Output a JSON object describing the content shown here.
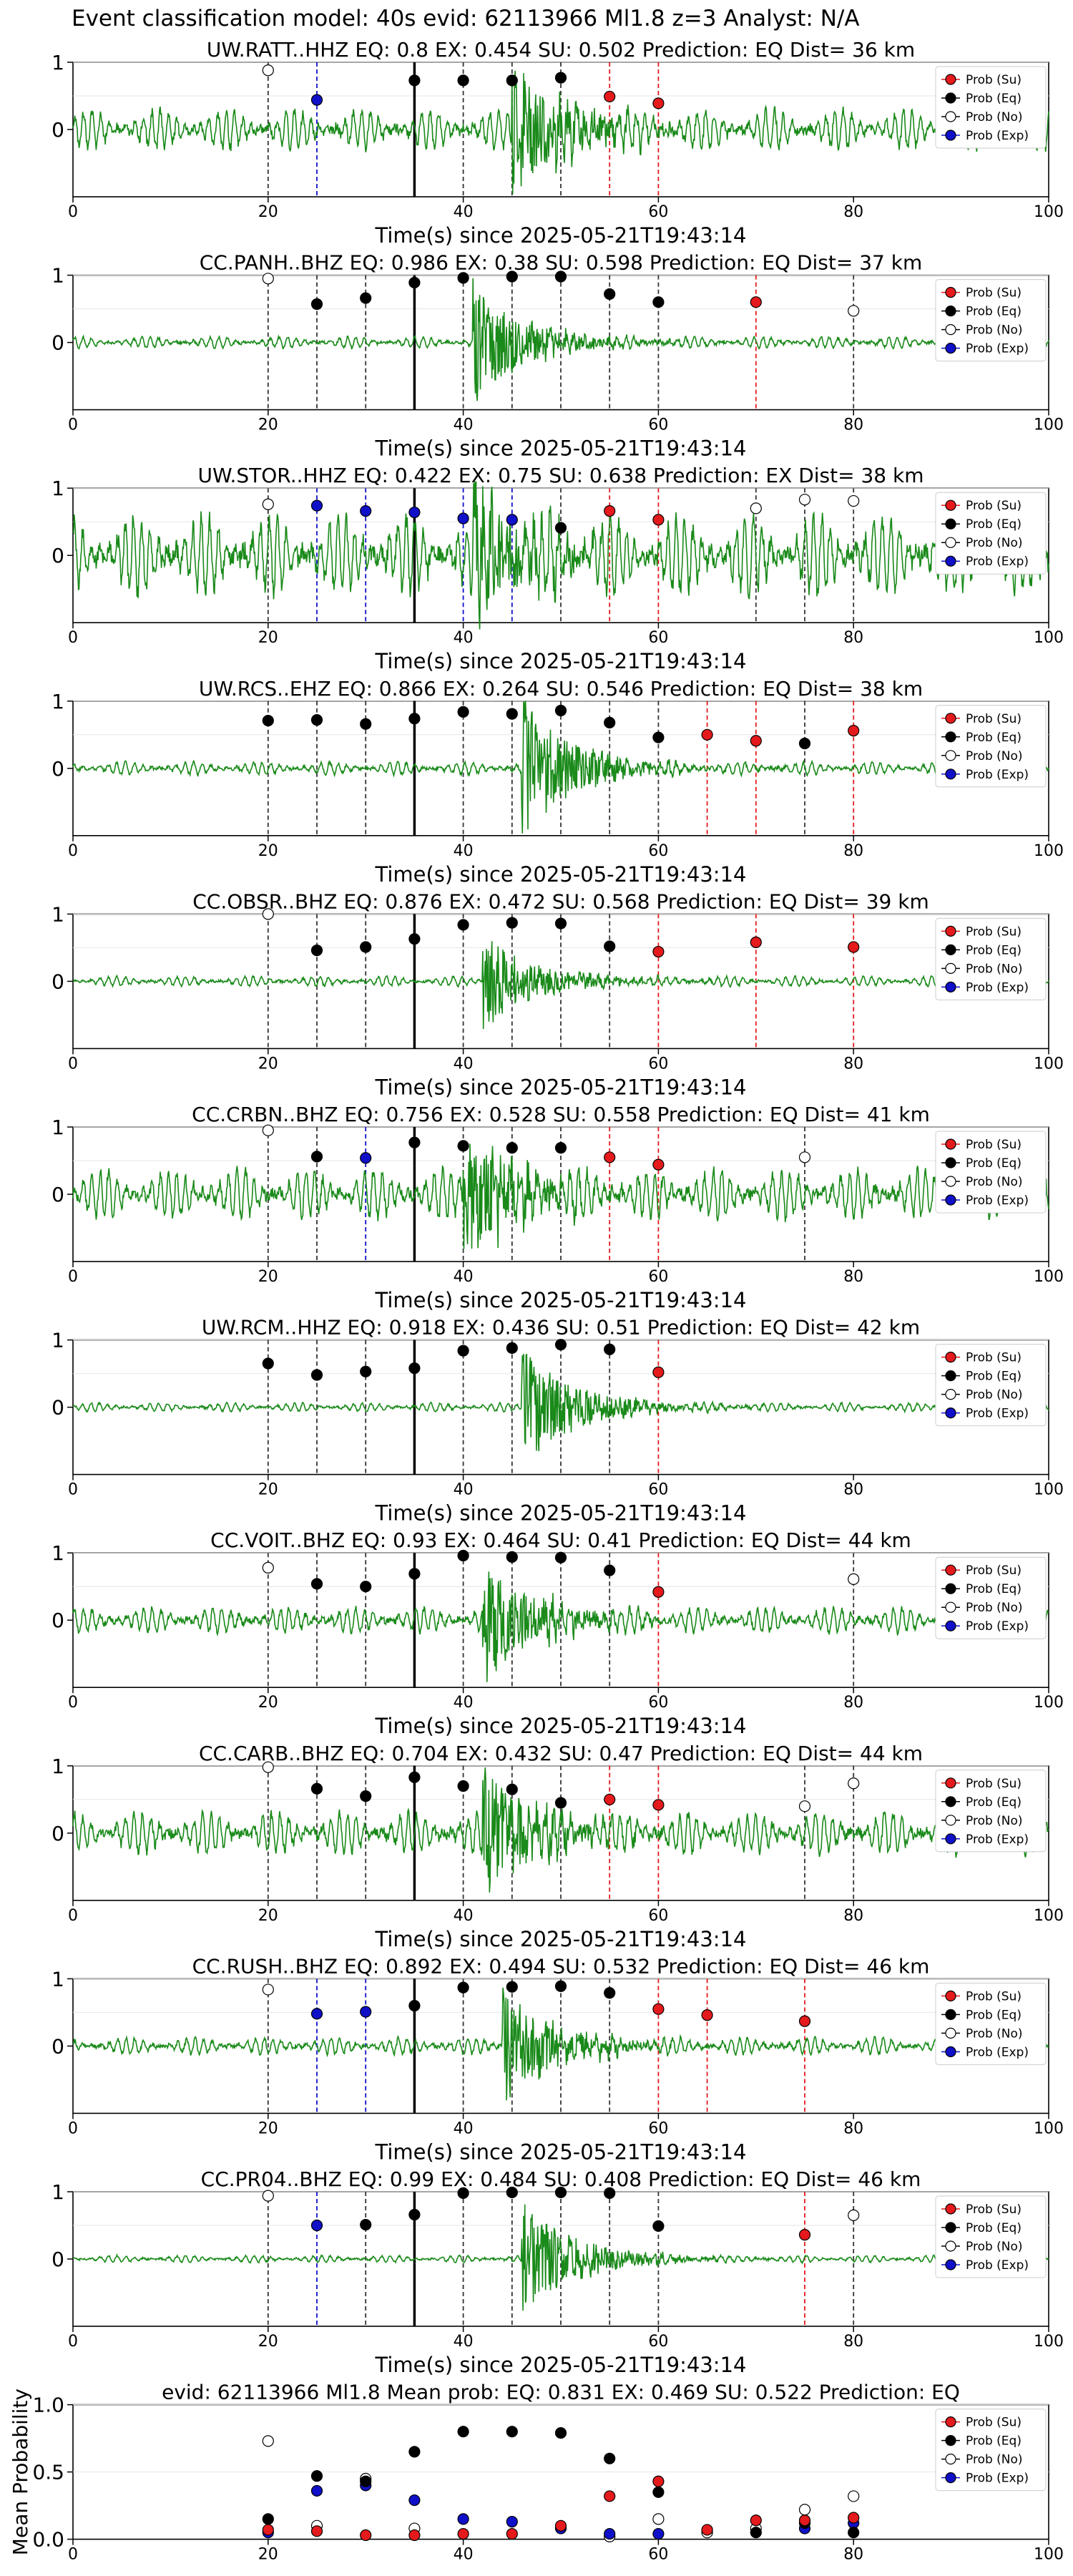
{
  "figure_title": "Event classification model: 40s evid: 62113966 Ml1.8 z=3 Analyst: N/A",
  "xlabel": "Time(s) since 2025-05-21T19:43:14",
  "legend": [
    "Prob (Su)",
    "Prob (Eq)",
    "Prob (No)",
    "Prob (Exp)"
  ],
  "colors": {
    "su": "#e41a1c",
    "eq": "#000000",
    "no": "#ffffff",
    "exp": "#1010c8",
    "trace": "#1a8a1a"
  },
  "chart_data": [
    {
      "type": "scatter",
      "title": "UW.RATT..HHZ   EQ: 0.8  EX: 0.454  SU: 0.502   Prediction: EQ    Dist= 36 km",
      "xlim": [
        0,
        100
      ],
      "ylim": [
        -1,
        1
      ],
      "xticks": [
        "0",
        "20",
        "40",
        "60",
        "80",
        "100"
      ],
      "yticks": [
        "1",
        "0"
      ],
      "p_arrival": 35,
      "quake_start": 45,
      "noise": 0.28,
      "quake_amp": 1.0,
      "points": [
        {
          "x": 20,
          "y": 0.88,
          "c": "no"
        },
        {
          "x": 25,
          "y": 0.44,
          "c": "exp"
        },
        {
          "x": 35,
          "y": 0.73,
          "c": "eq"
        },
        {
          "x": 40,
          "y": 0.73,
          "c": "eq"
        },
        {
          "x": 45,
          "y": 0.73,
          "c": "eq"
        },
        {
          "x": 50,
          "y": 0.77,
          "c": "eq"
        },
        {
          "x": 55,
          "y": 0.49,
          "c": "su"
        },
        {
          "x": 60,
          "y": 0.39,
          "c": "su"
        }
      ]
    },
    {
      "type": "scatter",
      "title": "CC.PANH..BHZ   EQ: 0.986  EX: 0.38  SU: 0.598   Prediction: EQ    Dist= 37 km",
      "xlim": [
        0,
        100
      ],
      "ylim": [
        -1,
        1
      ],
      "xticks": [
        "0",
        "20",
        "40",
        "60",
        "80",
        "100"
      ],
      "yticks": [
        "1",
        "0"
      ],
      "p_arrival": 35,
      "quake_start": 41,
      "noise": 0.08,
      "quake_amp": 0.9,
      "points": [
        {
          "x": 20,
          "y": 0.95,
          "c": "no"
        },
        {
          "x": 25,
          "y": 0.57,
          "c": "eq"
        },
        {
          "x": 30,
          "y": 0.66,
          "c": "eq"
        },
        {
          "x": 35,
          "y": 0.89,
          "c": "eq"
        },
        {
          "x": 40,
          "y": 0.96,
          "c": "eq"
        },
        {
          "x": 45,
          "y": 0.98,
          "c": "eq"
        },
        {
          "x": 50,
          "y": 0.98,
          "c": "eq"
        },
        {
          "x": 55,
          "y": 0.72,
          "c": "eq"
        },
        {
          "x": 60,
          "y": 0.6,
          "c": "eq"
        },
        {
          "x": 70,
          "y": 0.6,
          "c": "su"
        },
        {
          "x": 80,
          "y": 0.47,
          "c": "no"
        }
      ]
    },
    {
      "type": "scatter",
      "title": "UW.STOR..HHZ   EQ: 0.422  EX: 0.75  SU: 0.638   Prediction: EX    Dist= 38 km",
      "xlim": [
        0,
        100
      ],
      "ylim": [
        -1,
        1
      ],
      "xticks": [
        "0",
        "20",
        "40",
        "60",
        "80",
        "100"
      ],
      "yticks": [
        "1",
        "0"
      ],
      "p_arrival": 35,
      "quake_start": 41,
      "noise": 0.55,
      "quake_amp": 1.0,
      "points": [
        {
          "x": 20,
          "y": 0.76,
          "c": "no"
        },
        {
          "x": 25,
          "y": 0.74,
          "c": "exp"
        },
        {
          "x": 30,
          "y": 0.66,
          "c": "exp"
        },
        {
          "x": 35,
          "y": 0.64,
          "c": "exp"
        },
        {
          "x": 40,
          "y": 0.55,
          "c": "exp"
        },
        {
          "x": 45,
          "y": 0.53,
          "c": "exp"
        },
        {
          "x": 50,
          "y": 0.41,
          "c": "eq"
        },
        {
          "x": 55,
          "y": 0.66,
          "c": "su"
        },
        {
          "x": 60,
          "y": 0.53,
          "c": "su"
        },
        {
          "x": 70,
          "y": 0.7,
          "c": "no"
        },
        {
          "x": 75,
          "y": 0.83,
          "c": "no"
        },
        {
          "x": 80,
          "y": 0.81,
          "c": "no"
        }
      ]
    },
    {
      "type": "scatter",
      "title": "UW.RCS..EHZ   EQ: 0.866  EX: 0.264  SU: 0.546   Prediction: EQ    Dist= 38 km",
      "xlim": [
        0,
        100
      ],
      "ylim": [
        -1,
        1
      ],
      "xticks": [
        "0",
        "20",
        "40",
        "60",
        "80",
        "100"
      ],
      "yticks": [
        "1",
        "0"
      ],
      "p_arrival": 35,
      "quake_start": 46,
      "noise": 0.09,
      "quake_amp": 1.0,
      "points": [
        {
          "x": 20,
          "y": 0.71,
          "c": "eq"
        },
        {
          "x": 25,
          "y": 0.72,
          "c": "eq"
        },
        {
          "x": 30,
          "y": 0.66,
          "c": "eq"
        },
        {
          "x": 35,
          "y": 0.74,
          "c": "eq"
        },
        {
          "x": 40,
          "y": 0.84,
          "c": "eq"
        },
        {
          "x": 45,
          "y": 0.81,
          "c": "eq"
        },
        {
          "x": 50,
          "y": 0.86,
          "c": "eq"
        },
        {
          "x": 55,
          "y": 0.68,
          "c": "eq"
        },
        {
          "x": 60,
          "y": 0.46,
          "c": "eq"
        },
        {
          "x": 65,
          "y": 0.5,
          "c": "su"
        },
        {
          "x": 70,
          "y": 0.41,
          "c": "su"
        },
        {
          "x": 75,
          "y": 0.37,
          "c": "eq"
        },
        {
          "x": 80,
          "y": 0.56,
          "c": "su"
        }
      ]
    },
    {
      "type": "scatter",
      "title": "CC.OBSR..BHZ   EQ: 0.876  EX: 0.472  SU: 0.568   Prediction: EQ    Dist= 39 km",
      "xlim": [
        0,
        100
      ],
      "ylim": [
        -1,
        1
      ],
      "xticks": [
        "0",
        "20",
        "40",
        "60",
        "80",
        "100"
      ],
      "yticks": [
        "1",
        "0"
      ],
      "p_arrival": 35,
      "quake_start": 42,
      "noise": 0.07,
      "quake_amp": 0.75,
      "points": [
        {
          "x": 20,
          "y": 1.0,
          "c": "no"
        },
        {
          "x": 25,
          "y": 0.46,
          "c": "eq"
        },
        {
          "x": 30,
          "y": 0.51,
          "c": "eq"
        },
        {
          "x": 35,
          "y": 0.63,
          "c": "eq"
        },
        {
          "x": 40,
          "y": 0.84,
          "c": "eq"
        },
        {
          "x": 45,
          "y": 0.87,
          "c": "eq"
        },
        {
          "x": 50,
          "y": 0.86,
          "c": "eq"
        },
        {
          "x": 55,
          "y": 0.52,
          "c": "eq"
        },
        {
          "x": 60,
          "y": 0.44,
          "c": "su"
        },
        {
          "x": 70,
          "y": 0.58,
          "c": "su"
        },
        {
          "x": 80,
          "y": 0.51,
          "c": "su"
        }
      ]
    },
    {
      "type": "scatter",
      "title": "CC.CRBN..BHZ   EQ: 0.756  EX: 0.528  SU: 0.558   Prediction: EQ    Dist= 41 km",
      "xlim": [
        0,
        100
      ],
      "ylim": [
        -1,
        1
      ],
      "xticks": [
        "0",
        "20",
        "40",
        "60",
        "80",
        "100"
      ],
      "yticks": [
        "1",
        "0"
      ],
      "p_arrival": 35,
      "quake_start": 40,
      "noise": 0.35,
      "quake_amp": 1.0,
      "points": [
        {
          "x": 20,
          "y": 0.95,
          "c": "no"
        },
        {
          "x": 25,
          "y": 0.56,
          "c": "eq"
        },
        {
          "x": 30,
          "y": 0.54,
          "c": "exp"
        },
        {
          "x": 35,
          "y": 0.77,
          "c": "eq"
        },
        {
          "x": 40,
          "y": 0.72,
          "c": "eq"
        },
        {
          "x": 45,
          "y": 0.69,
          "c": "eq"
        },
        {
          "x": 50,
          "y": 0.69,
          "c": "eq"
        },
        {
          "x": 55,
          "y": 0.55,
          "c": "su"
        },
        {
          "x": 60,
          "y": 0.44,
          "c": "su"
        },
        {
          "x": 75,
          "y": 0.55,
          "c": "no"
        }
      ]
    },
    {
      "type": "scatter",
      "title": "UW.RCM..HHZ   EQ: 0.918  EX: 0.436  SU: 0.51   Prediction: EQ    Dist= 42 km",
      "xlim": [
        0,
        100
      ],
      "ylim": [
        -1,
        1
      ],
      "xticks": [
        "0",
        "20",
        "40",
        "60",
        "80",
        "100"
      ],
      "yticks": [
        "1",
        "0"
      ],
      "p_arrival": 35,
      "quake_start": 46,
      "noise": 0.06,
      "quake_amp": 0.9,
      "points": [
        {
          "x": 20,
          "y": 0.65,
          "c": "eq"
        },
        {
          "x": 25,
          "y": 0.48,
          "c": "eq"
        },
        {
          "x": 30,
          "y": 0.53,
          "c": "eq"
        },
        {
          "x": 35,
          "y": 0.58,
          "c": "eq"
        },
        {
          "x": 40,
          "y": 0.84,
          "c": "eq"
        },
        {
          "x": 45,
          "y": 0.88,
          "c": "eq"
        },
        {
          "x": 50,
          "y": 0.93,
          "c": "eq"
        },
        {
          "x": 55,
          "y": 0.86,
          "c": "eq"
        },
        {
          "x": 60,
          "y": 0.52,
          "c": "su"
        }
      ]
    },
    {
      "type": "scatter",
      "title": "CC.VOIT..BHZ   EQ: 0.93  EX: 0.464  SU: 0.41   Prediction: EQ    Dist= 44 km",
      "xlim": [
        0,
        100
      ],
      "ylim": [
        -1,
        1
      ],
      "xticks": [
        "0",
        "20",
        "40",
        "60",
        "80",
        "100"
      ],
      "yticks": [
        "1",
        "0"
      ],
      "p_arrival": 35,
      "quake_start": 42,
      "noise": 0.18,
      "quake_amp": 0.85,
      "points": [
        {
          "x": 20,
          "y": 0.78,
          "c": "no"
        },
        {
          "x": 25,
          "y": 0.54,
          "c": "eq"
        },
        {
          "x": 30,
          "y": 0.5,
          "c": "eq"
        },
        {
          "x": 35,
          "y": 0.69,
          "c": "eq"
        },
        {
          "x": 40,
          "y": 0.96,
          "c": "eq"
        },
        {
          "x": 45,
          "y": 0.94,
          "c": "eq"
        },
        {
          "x": 50,
          "y": 0.93,
          "c": "eq"
        },
        {
          "x": 55,
          "y": 0.74,
          "c": "eq"
        },
        {
          "x": 60,
          "y": 0.42,
          "c": "su"
        },
        {
          "x": 80,
          "y": 0.61,
          "c": "no"
        }
      ]
    },
    {
      "type": "scatter",
      "title": "CC.CARB..BHZ   EQ: 0.704  EX: 0.432  SU: 0.47   Prediction: EQ    Dist= 44 km",
      "xlim": [
        0,
        100
      ],
      "ylim": [
        -1,
        1
      ],
      "xticks": [
        "0",
        "20",
        "40",
        "60",
        "80",
        "100"
      ],
      "yticks": [
        "1",
        "0"
      ],
      "p_arrival": 35,
      "quake_start": 42,
      "noise": 0.3,
      "quake_amp": 1.0,
      "points": [
        {
          "x": 20,
          "y": 0.98,
          "c": "no"
        },
        {
          "x": 25,
          "y": 0.66,
          "c": "eq"
        },
        {
          "x": 30,
          "y": 0.55,
          "c": "eq"
        },
        {
          "x": 35,
          "y": 0.83,
          "c": "eq"
        },
        {
          "x": 40,
          "y": 0.7,
          "c": "eq"
        },
        {
          "x": 45,
          "y": 0.65,
          "c": "eq"
        },
        {
          "x": 50,
          "y": 0.45,
          "c": "eq"
        },
        {
          "x": 55,
          "y": 0.5,
          "c": "su"
        },
        {
          "x": 60,
          "y": 0.42,
          "c": "su"
        },
        {
          "x": 75,
          "y": 0.4,
          "c": "no"
        },
        {
          "x": 80,
          "y": 0.74,
          "c": "no"
        }
      ]
    },
    {
      "type": "scatter",
      "title": "CC.RUSH..BHZ   EQ: 0.892  EX: 0.494  SU: 0.532   Prediction: EQ    Dist= 46 km",
      "xlim": [
        0,
        100
      ],
      "ylim": [
        -1,
        1
      ],
      "xticks": [
        "0",
        "20",
        "40",
        "60",
        "80",
        "100"
      ],
      "yticks": [
        "1",
        "0"
      ],
      "p_arrival": 35,
      "quake_start": 44,
      "noise": 0.12,
      "quake_amp": 0.9,
      "points": [
        {
          "x": 20,
          "y": 0.84,
          "c": "no"
        },
        {
          "x": 25,
          "y": 0.48,
          "c": "exp"
        },
        {
          "x": 30,
          "y": 0.51,
          "c": "exp"
        },
        {
          "x": 35,
          "y": 0.6,
          "c": "eq"
        },
        {
          "x": 40,
          "y": 0.87,
          "c": "eq"
        },
        {
          "x": 45,
          "y": 0.88,
          "c": "eq"
        },
        {
          "x": 50,
          "y": 0.89,
          "c": "eq"
        },
        {
          "x": 55,
          "y": 0.79,
          "c": "eq"
        },
        {
          "x": 60,
          "y": 0.55,
          "c": "su"
        },
        {
          "x": 65,
          "y": 0.46,
          "c": "su"
        },
        {
          "x": 75,
          "y": 0.37,
          "c": "su"
        }
      ]
    },
    {
      "type": "scatter",
      "title": "CC.PR04..BHZ   EQ: 0.99  EX: 0.484  SU: 0.408   Prediction: EQ    Dist= 46 km",
      "xlim": [
        0,
        100
      ],
      "ylim": [
        -1,
        1
      ],
      "xticks": [
        "0",
        "20",
        "40",
        "60",
        "80",
        "100"
      ],
      "yticks": [
        "1",
        "0"
      ],
      "p_arrival": 35,
      "quake_start": 46,
      "noise": 0.05,
      "quake_amp": 0.85,
      "points": [
        {
          "x": 20,
          "y": 0.94,
          "c": "no"
        },
        {
          "x": 25,
          "y": 0.5,
          "c": "exp"
        },
        {
          "x": 30,
          "y": 0.51,
          "c": "eq"
        },
        {
          "x": 35,
          "y": 0.66,
          "c": "eq"
        },
        {
          "x": 40,
          "y": 0.98,
          "c": "eq"
        },
        {
          "x": 45,
          "y": 0.99,
          "c": "eq"
        },
        {
          "x": 50,
          "y": 0.99,
          "c": "eq"
        },
        {
          "x": 55,
          "y": 0.98,
          "c": "eq"
        },
        {
          "x": 60,
          "y": 0.49,
          "c": "eq"
        },
        {
          "x": 75,
          "y": 0.36,
          "c": "su"
        },
        {
          "x": 80,
          "y": 0.65,
          "c": "no"
        }
      ]
    },
    {
      "type": "scatter",
      "summary": true,
      "title": "evid: 62113966  Ml1.8   Mean prob:   EQ: 0.831  EX: 0.469  SU: 0.522   Prediction: EQ",
      "ylabel": "Mean Probability",
      "xlim": [
        0,
        100
      ],
      "ylim": [
        0,
        1
      ],
      "xticks": [
        "0",
        "20",
        "40",
        "60",
        "80",
        "100"
      ],
      "yticks": [
        "0.0",
        "0.5",
        "1.0"
      ],
      "points": [
        {
          "x": 20,
          "y": 0.73,
          "c": "no"
        },
        {
          "x": 25,
          "y": 0.1,
          "c": "no"
        },
        {
          "x": 30,
          "y": 0.45,
          "c": "no"
        },
        {
          "x": 35,
          "y": 0.08,
          "c": "no"
        },
        {
          "x": 55,
          "y": 0.02,
          "c": "no"
        },
        {
          "x": 60,
          "y": 0.15,
          "c": "no"
        },
        {
          "x": 65,
          "y": 0.05,
          "c": "no"
        },
        {
          "x": 70,
          "y": 0.08,
          "c": "no"
        },
        {
          "x": 75,
          "y": 0.22,
          "c": "no"
        },
        {
          "x": 80,
          "y": 0.32,
          "c": "no"
        },
        {
          "x": 20,
          "y": 0.05,
          "c": "exp"
        },
        {
          "x": 25,
          "y": 0.36,
          "c": "exp"
        },
        {
          "x": 30,
          "y": 0.4,
          "c": "exp"
        },
        {
          "x": 35,
          "y": 0.29,
          "c": "exp"
        },
        {
          "x": 40,
          "y": 0.15,
          "c": "exp"
        },
        {
          "x": 45,
          "y": 0.13,
          "c": "exp"
        },
        {
          "x": 50,
          "y": 0.08,
          "c": "exp"
        },
        {
          "x": 55,
          "y": 0.04,
          "c": "exp"
        },
        {
          "x": 60,
          "y": 0.04,
          "c": "exp"
        },
        {
          "x": 75,
          "y": 0.08,
          "c": "exp"
        },
        {
          "x": 80,
          "y": 0.12,
          "c": "exp"
        },
        {
          "x": 20,
          "y": 0.15,
          "c": "eq"
        },
        {
          "x": 25,
          "y": 0.47,
          "c": "eq"
        },
        {
          "x": 30,
          "y": 0.43,
          "c": "eq"
        },
        {
          "x": 35,
          "y": 0.65,
          "c": "eq"
        },
        {
          "x": 40,
          "y": 0.8,
          "c": "eq"
        },
        {
          "x": 45,
          "y": 0.8,
          "c": "eq"
        },
        {
          "x": 50,
          "y": 0.79,
          "c": "eq"
        },
        {
          "x": 55,
          "y": 0.6,
          "c": "eq"
        },
        {
          "x": 60,
          "y": 0.35,
          "c": "eq"
        },
        {
          "x": 70,
          "y": 0.05,
          "c": "eq"
        },
        {
          "x": 75,
          "y": 0.12,
          "c": "eq"
        },
        {
          "x": 80,
          "y": 0.05,
          "c": "eq"
        },
        {
          "x": 20,
          "y": 0.07,
          "c": "su"
        },
        {
          "x": 25,
          "y": 0.06,
          "c": "su"
        },
        {
          "x": 30,
          "y": 0.03,
          "c": "su"
        },
        {
          "x": 35,
          "y": 0.03,
          "c": "su"
        },
        {
          "x": 40,
          "y": 0.04,
          "c": "su"
        },
        {
          "x": 45,
          "y": 0.04,
          "c": "su"
        },
        {
          "x": 50,
          "y": 0.1,
          "c": "su"
        },
        {
          "x": 55,
          "y": 0.32,
          "c": "su"
        },
        {
          "x": 60,
          "y": 0.43,
          "c": "su"
        },
        {
          "x": 65,
          "y": 0.07,
          "c": "su"
        },
        {
          "x": 70,
          "y": 0.14,
          "c": "su"
        },
        {
          "x": 75,
          "y": 0.14,
          "c": "su"
        },
        {
          "x": 80,
          "y": 0.16,
          "c": "su"
        }
      ]
    }
  ]
}
